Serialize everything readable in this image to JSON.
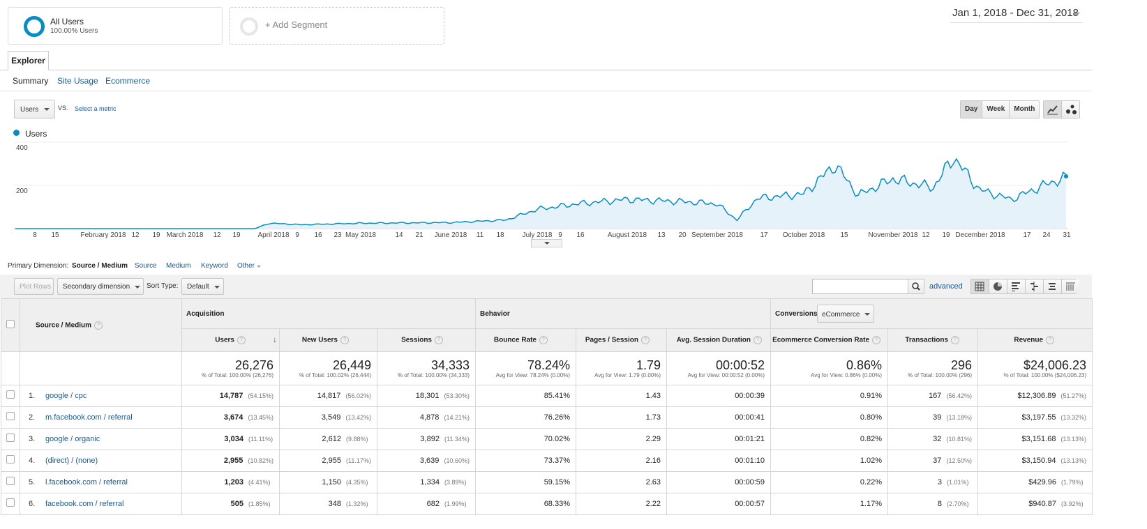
{
  "segments": {
    "active": {
      "title": "All Users",
      "subtitle": "100.00% Users"
    },
    "add_label": "+ Add Segment"
  },
  "date_range": "Jan 1, 2018 - Dec 31, 2018",
  "tabs": {
    "explorer": "Explorer"
  },
  "subtabs": [
    "Summary",
    "Site Usage",
    "Ecommerce"
  ],
  "metric": {
    "selected": "Users",
    "vs": "VS.",
    "select_metric": "Select a metric"
  },
  "granularity": [
    "Day",
    "Week",
    "Month"
  ],
  "chart_data": {
    "type": "area",
    "series_name": "Users",
    "yticks": [
      "400",
      "200"
    ],
    "ylim": [
      0,
      400
    ],
    "xticks": [
      "8",
      "15",
      "February 2018",
      "12",
      "19",
      "March 2018",
      "12",
      "19",
      "April 2018",
      "9",
      "16",
      "23",
      "May 2018",
      "14",
      "21",
      "June 2018",
      "11",
      "18",
      "July 2018",
      "9",
      "16",
      "August 2018",
      "13",
      "20",
      "September 2018",
      "17",
      "October 2018",
      "15",
      "November 2018",
      "12",
      "19",
      "December 2018",
      "17",
      "24",
      "31"
    ],
    "keypoints": [
      [
        "2018-01-01",
        0
      ],
      [
        "2018-03-25",
        0
      ],
      [
        "2018-03-30",
        25
      ],
      [
        "2018-04-10",
        18
      ],
      [
        "2018-05-01",
        25
      ],
      [
        "2018-06-01",
        28
      ],
      [
        "2018-06-20",
        40
      ],
      [
        "2018-07-01",
        90
      ],
      [
        "2018-07-15",
        115
      ],
      [
        "2018-08-01",
        135
      ],
      [
        "2018-08-20",
        125
      ],
      [
        "2018-09-01",
        115
      ],
      [
        "2018-09-08",
        40
      ],
      [
        "2018-09-15",
        140
      ],
      [
        "2018-10-01",
        160
      ],
      [
        "2018-10-12",
        295
      ],
      [
        "2018-10-20",
        155
      ],
      [
        "2018-11-01",
        230
      ],
      [
        "2018-11-15",
        190
      ],
      [
        "2018-11-22",
        330
      ],
      [
        "2018-12-01",
        180
      ],
      [
        "2018-12-12",
        135
      ],
      [
        "2018-12-25",
        210
      ],
      [
        "2018-12-31",
        235
      ]
    ]
  },
  "dimensions": {
    "label": "Primary Dimension:",
    "active": "Source / Medium",
    "others": [
      "Source",
      "Medium",
      "Keyword"
    ],
    "other": "Other"
  },
  "toolbar": {
    "plot_rows": "Plot Rows",
    "secondary": "Secondary dimension",
    "sort_label": "Sort Type:",
    "sort_value": "Default",
    "advanced": "advanced"
  },
  "table": {
    "dim_header": "Source / Medium",
    "groups": {
      "acquisition": "Acquisition",
      "behavior": "Behavior",
      "conversions": "Conversions",
      "conv_select": "eCommerce"
    },
    "columns": [
      "Users",
      "New Users",
      "Sessions",
      "Bounce Rate",
      "Pages / Session",
      "Avg. Session Duration",
      "Ecommerce Conversion Rate",
      "Transactions",
      "Revenue"
    ],
    "totals": [
      {
        "value": "26,276",
        "sub": "% of Total: 100.00% (26,276)"
      },
      {
        "value": "26,449",
        "sub": "% of Total: 100.02% (26,444)"
      },
      {
        "value": "34,333",
        "sub": "% of Total: 100.00% (34,333)"
      },
      {
        "value": "78.24%",
        "sub": "Avg for View: 78.24% (0.00%)"
      },
      {
        "value": "1.79",
        "sub": "Avg for View: 1.79 (0.00%)"
      },
      {
        "value": "00:00:52",
        "sub": "Avg for View: 00:00:52 (0.00%)"
      },
      {
        "value": "0.86%",
        "sub": "Avg for View: 0.86% (0.00%)"
      },
      {
        "value": "296",
        "sub": "% of Total: 100.00% (296)"
      },
      {
        "value": "$24,006.23",
        "sub": "% of Total: 100.00% ($24,006.23)"
      }
    ],
    "rows": [
      {
        "idx": "1.",
        "name": "google / cpc",
        "users": "14,787",
        "users_pct": "(54.15%)",
        "new_users": "14,817",
        "new_users_pct": "(56.02%)",
        "sessions": "18,301",
        "sessions_pct": "(53.30%)",
        "bounce": "85.41%",
        "pages": "1.43",
        "duration": "00:00:39",
        "conv": "0.91%",
        "trans": "167",
        "trans_pct": "(56.42%)",
        "revenue": "$12,306.89",
        "revenue_pct": "(51.27%)"
      },
      {
        "idx": "2.",
        "name": "m.facebook.com / referral",
        "users": "3,674",
        "users_pct": "(13.45%)",
        "new_users": "3,549",
        "new_users_pct": "(13.42%)",
        "sessions": "4,878",
        "sessions_pct": "(14.21%)",
        "bounce": "76.26%",
        "pages": "1.73",
        "duration": "00:00:41",
        "conv": "0.80%",
        "trans": "39",
        "trans_pct": "(13.18%)",
        "revenue": "$3,197.55",
        "revenue_pct": "(13.32%)"
      },
      {
        "idx": "3.",
        "name": "google / organic",
        "users": "3,034",
        "users_pct": "(11.11%)",
        "new_users": "2,612",
        "new_users_pct": "(9.88%)",
        "sessions": "3,892",
        "sessions_pct": "(11.34%)",
        "bounce": "70.02%",
        "pages": "2.29",
        "duration": "00:01:21",
        "conv": "0.82%",
        "trans": "32",
        "trans_pct": "(10.81%)",
        "revenue": "$3,151.68",
        "revenue_pct": "(13.13%)"
      },
      {
        "idx": "4.",
        "name": "(direct) / (none)",
        "users": "2,955",
        "users_pct": "(10.82%)",
        "new_users": "2,955",
        "new_users_pct": "(11.17%)",
        "sessions": "3,639",
        "sessions_pct": "(10.60%)",
        "bounce": "73.37%",
        "pages": "2.16",
        "duration": "00:01:10",
        "conv": "1.02%",
        "trans": "37",
        "trans_pct": "(12.50%)",
        "revenue": "$3,150.94",
        "revenue_pct": "(13.13%)"
      },
      {
        "idx": "5.",
        "name": "l.facebook.com / referral",
        "users": "1,203",
        "users_pct": "(4.41%)",
        "new_users": "1,150",
        "new_users_pct": "(4.35%)",
        "sessions": "1,334",
        "sessions_pct": "(3.89%)",
        "bounce": "59.15%",
        "pages": "2.63",
        "duration": "00:00:59",
        "conv": "0.22%",
        "trans": "3",
        "trans_pct": "(1.01%)",
        "revenue": "$429.96",
        "revenue_pct": "(1.79%)"
      },
      {
        "idx": "6.",
        "name": "facebook.com / referral",
        "users": "505",
        "users_pct": "(1.85%)",
        "new_users": "348",
        "new_users_pct": "(1.32%)",
        "sessions": "682",
        "sessions_pct": "(1.99%)",
        "bounce": "68.33%",
        "pages": "2.22",
        "duration": "00:00:57",
        "conv": "1.17%",
        "trans": "8",
        "trans_pct": "(2.70%)",
        "revenue": "$940.87",
        "revenue_pct": "(3.92%)"
      }
    ]
  },
  "colors": {
    "accent": "#058dc7",
    "link": "#1a5a96",
    "area_fill": "#e6f2f9"
  }
}
